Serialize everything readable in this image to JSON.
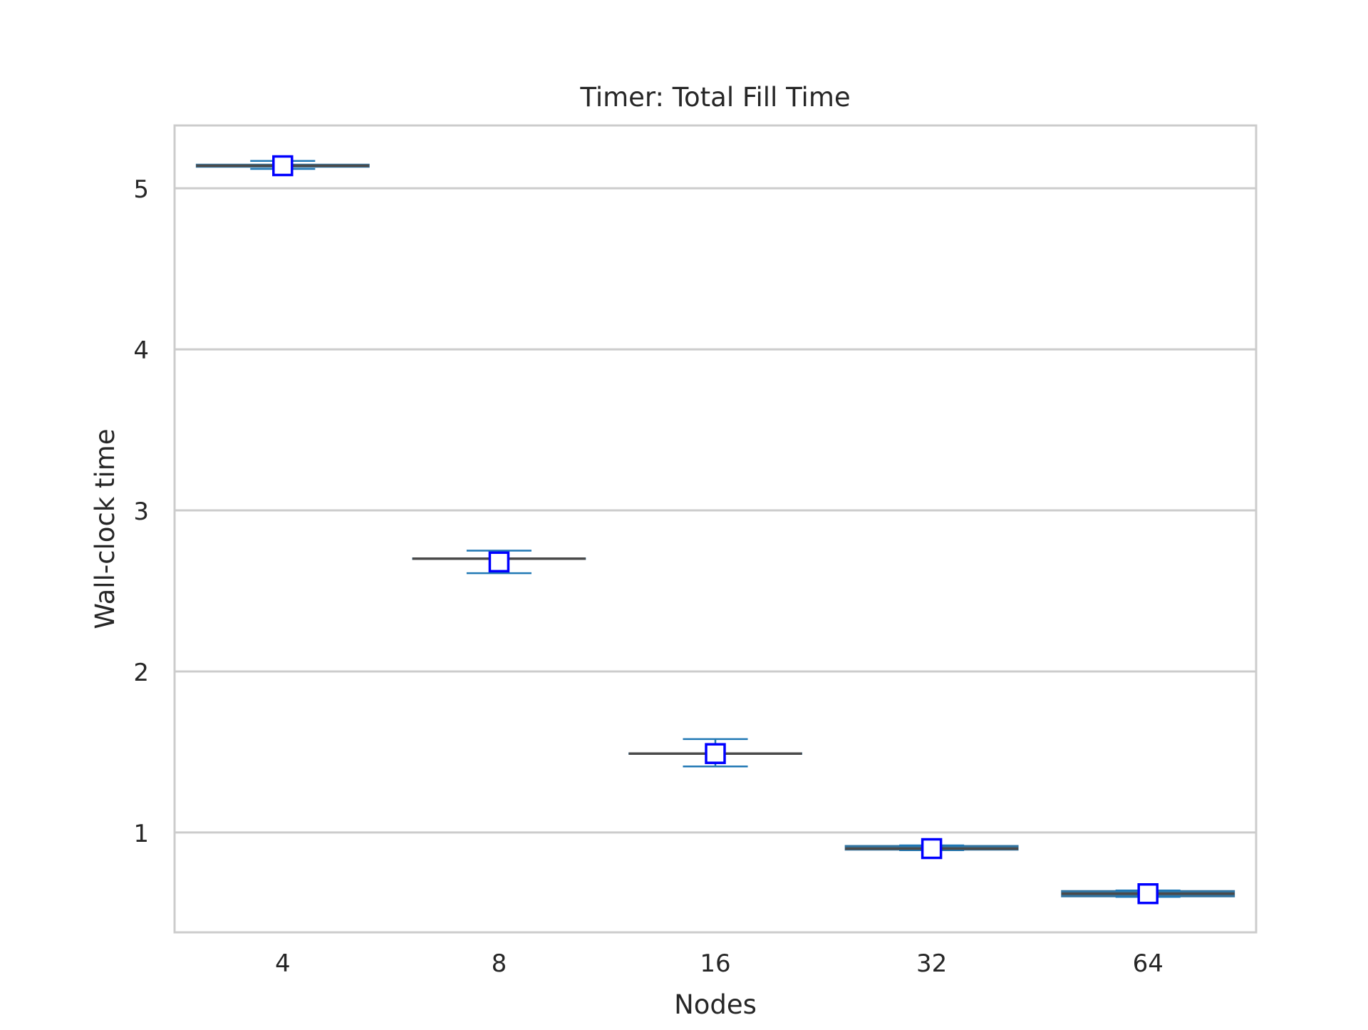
{
  "chart_data": {
    "type": "box",
    "title": "Timer: Total Fill Time",
    "xlabel": "Nodes",
    "ylabel": "Wall-clock time",
    "categories": [
      "4",
      "8",
      "16",
      "32",
      "64"
    ],
    "ylim": [
      0.38,
      5.39
    ],
    "yticks": [
      1,
      2,
      3,
      4,
      5
    ],
    "grid": "horizontal",
    "boxes": [
      {
        "category": "4",
        "median": 5.14,
        "q1": 5.13,
        "q3": 5.15,
        "whisker_low": 5.12,
        "whisker_high": 5.17,
        "mean": 5.14
      },
      {
        "category": "8",
        "median": 2.7,
        "q1": 2.695,
        "q3": 2.705,
        "whisker_low": 2.61,
        "whisker_high": 2.75,
        "mean": 2.68
      },
      {
        "category": "16",
        "median": 1.49,
        "q1": 1.485,
        "q3": 1.495,
        "whisker_low": 1.41,
        "whisker_high": 1.58,
        "mean": 1.49
      },
      {
        "category": "32",
        "median": 0.9,
        "q1": 0.89,
        "q3": 0.92,
        "whisker_low": 0.89,
        "whisker_high": 0.92,
        "mean": 0.9
      },
      {
        "category": "64",
        "median": 0.62,
        "q1": 0.6,
        "q3": 0.64,
        "whisker_low": 0.6,
        "whisker_high": 0.64,
        "mean": 0.62
      }
    ],
    "colors": {
      "box_fill": "#3274a1",
      "whisker": "#1f77b4",
      "median_line": "#4a4a4a",
      "mean_marker_edge": "#0000ff",
      "mean_marker_fill": "#ffffff",
      "grid": "#cccccc",
      "frame": "#cccccc"
    }
  }
}
